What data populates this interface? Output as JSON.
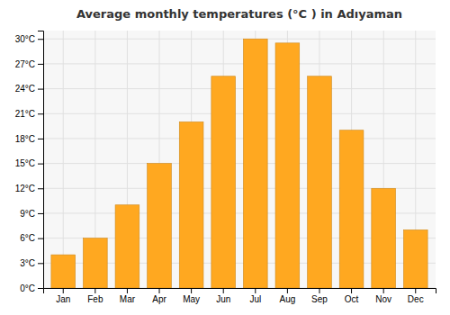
{
  "chart_data": {
    "type": "bar",
    "title": "Average monthly temperatures (°C ) in Adıyaman",
    "categories": [
      "Jan",
      "Feb",
      "Mar",
      "Apr",
      "May",
      "Jun",
      "Jul",
      "Aug",
      "Sep",
      "Oct",
      "Nov",
      "Dec"
    ],
    "values": [
      4.0,
      6.0,
      10.0,
      15.0,
      20.0,
      25.5,
      30.0,
      29.5,
      25.5,
      19.0,
      12.0,
      7.0
    ],
    "color": "#FFA820",
    "ylim": [
      0,
      31
    ],
    "yticks": [
      {
        "value": 0,
        "label": "0°C"
      },
      {
        "value": 3,
        "label": "3°C"
      },
      {
        "value": 6,
        "label": "6°C"
      },
      {
        "value": 9,
        "label": "9°C"
      },
      {
        "value": 12,
        "label": "12°C"
      },
      {
        "value": 15,
        "label": "15°C"
      },
      {
        "value": 18,
        "label": "18°C"
      },
      {
        "value": 21,
        "label": "21°C"
      },
      {
        "value": 24,
        "label": "24°C"
      },
      {
        "value": 27,
        "label": "27°C"
      },
      {
        "value": 30,
        "label": "30°C"
      }
    ],
    "grid": true
  }
}
